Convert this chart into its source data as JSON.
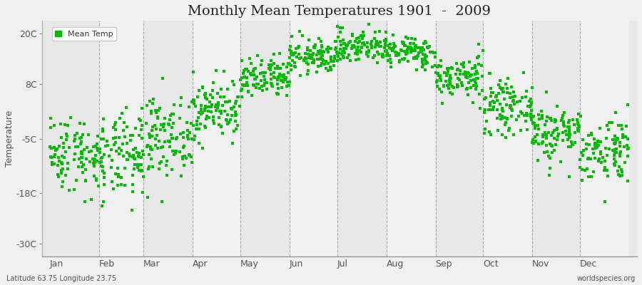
{
  "title": "Monthly Mean Temperatures 1901  -  2009",
  "ylabel": "Temperature",
  "xlabel_bottom_left": "Latitude 63.75 Longitude 23.75",
  "xlabel_bottom_right": "worldspecies.org",
  "legend_label": "Mean Temp",
  "months": [
    "Jan",
    "Feb",
    "Mar",
    "Apr",
    "May",
    "Jun",
    "Jul",
    "Aug",
    "Sep",
    "Oct",
    "Nov",
    "Dec"
  ],
  "yticks": [
    -30,
    -18,
    -5,
    8,
    20
  ],
  "ytick_labels": [
    "-30C",
    "-18C",
    "-5C",
    "8C",
    "20C"
  ],
  "ylim": [
    -33,
    23
  ],
  "dot_color": "#00bb00",
  "background_color": "#f0f0f0",
  "band_colors": [
    "#e8e8e8",
    "#f0f0f0"
  ],
  "dashed_line_color": "#999999",
  "title_fontsize": 14,
  "axis_fontsize": 9,
  "legend_fontsize": 8,
  "monthly_means": [
    -8.5,
    -9.5,
    -4.5,
    2.0,
    9.0,
    14.5,
    17.0,
    15.5,
    9.5,
    2.5,
    -3.5,
    -7.5
  ],
  "monthly_stds": [
    4.5,
    5.0,
    4.5,
    3.5,
    2.5,
    2.0,
    2.0,
    1.8,
    2.5,
    3.0,
    3.5,
    4.0
  ],
  "n_years": 109,
  "seed": 42,
  "month_days": [
    31,
    28,
    31,
    30,
    31,
    30,
    31,
    31,
    30,
    31,
    30,
    31
  ],
  "total_days": 365
}
